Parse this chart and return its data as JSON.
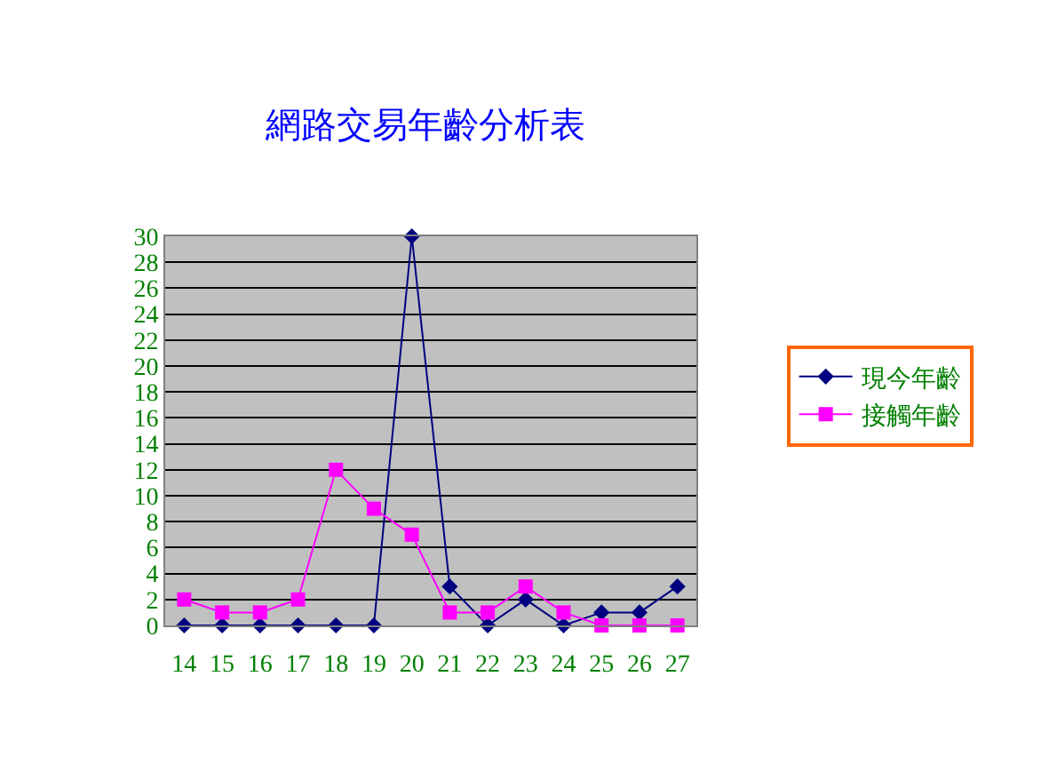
{
  "chart_data": {
    "type": "line",
    "title": "網路交易年齡分析表",
    "categories": [
      "14",
      "15",
      "16",
      "17",
      "18",
      "19",
      "20",
      "21",
      "22",
      "23",
      "24",
      "25",
      "26",
      "27"
    ],
    "series": [
      {
        "name": "現今年齡",
        "color": "#000080",
        "marker": "diamond",
        "values": [
          0,
          0,
          0,
          0,
          0,
          0,
          30,
          3,
          0,
          2,
          0,
          1,
          1,
          3
        ]
      },
      {
        "name": "接觸年齡",
        "color": "#ff00ff",
        "marker": "square",
        "values": [
          2,
          1,
          1,
          2,
          12,
          9,
          7,
          1,
          1,
          3,
          1,
          0,
          0,
          0
        ]
      }
    ],
    "ylim": [
      0,
      30
    ],
    "yticks": [
      0,
      2,
      4,
      6,
      8,
      10,
      12,
      14,
      16,
      18,
      20,
      22,
      24,
      26,
      28,
      30
    ],
    "grid": "y",
    "legend": "right",
    "line_style": "solid"
  }
}
